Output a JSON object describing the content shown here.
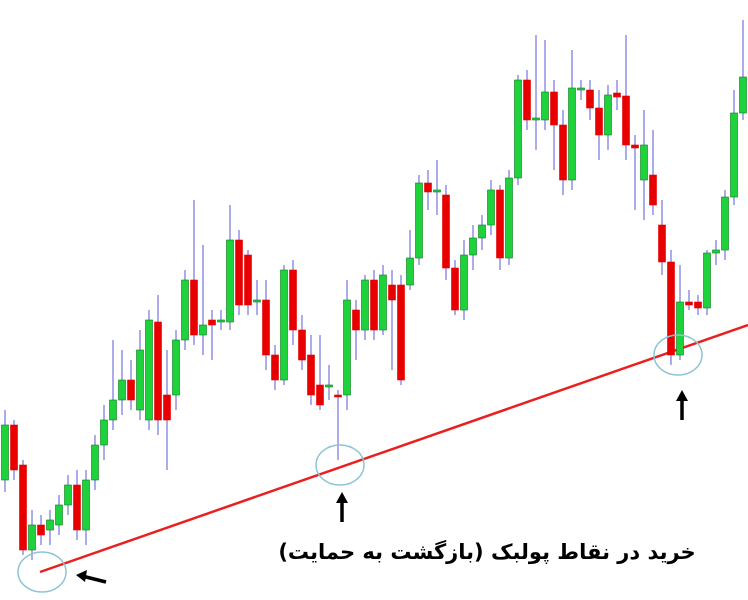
{
  "chart_data": {
    "type": "candlestick",
    "annotation": "خرید در نقاط پولبک (بازگشت به حمایت)",
    "ylim": [
      0,
      600
    ],
    "up_color": "#1ed23c",
    "down_color": "#e80000",
    "wick_color": "#5a5ad8",
    "open": [
      120,
      175,
      135,
      50,
      75,
      70,
      75,
      95,
      115,
      70,
      120,
      155,
      180,
      200,
      220,
      190,
      180,
      278,
      205,
      205,
      260,
      320,
      265,
      280,
      278,
      278,
      360,
      345,
      298,
      300,
      245,
      220,
      330,
      270,
      245,
      215,
      213,
      205,
      205,
      290,
      270,
      320,
      270,
      315,
      315,
      315,
      342,
      417,
      408,
      405,
      332,
      290,
      345,
      362,
      375,
      410,
      342,
      422,
      520,
      480,
      480,
      508,
      475,
      420,
      510,
      510,
      492,
      465,
      507,
      504,
      455,
      420,
      425,
      375,
      338,
      245,
      298,
      298,
      292,
      347,
      350,
      403,
      487
    ],
    "high": [
      190,
      180,
      140,
      90,
      85,
      90,
      105,
      125,
      130,
      130,
      165,
      195,
      260,
      250,
      240,
      270,
      290,
      305,
      250,
      270,
      330,
      400,
      355,
      290,
      290,
      395,
      370,
      350,
      320,
      320,
      255,
      335,
      340,
      285,
      265,
      265,
      235,
      210,
      320,
      300,
      325,
      330,
      335,
      330,
      325,
      370,
      425,
      430,
      440,
      415,
      340,
      360,
      375,
      385,
      420,
      415,
      430,
      525,
      530,
      565,
      560,
      520,
      490,
      550,
      520,
      520,
      510,
      515,
      520,
      565,
      465,
      490,
      470,
      400,
      350,
      335,
      310,
      305,
      350,
      360,
      410,
      510,
      580
    ],
    "low": [
      108,
      120,
      45,
      40,
      55,
      55,
      65,
      85,
      60,
      55,
      110,
      140,
      170,
      185,
      190,
      180,
      170,
      165,
      130,
      190,
      250,
      255,
      245,
      240,
      270,
      270,
      285,
      285,
      285,
      230,
      210,
      215,
      255,
      230,
      195,
      190,
      200,
      140,
      190,
      240,
      260,
      260,
      265,
      230,
      215,
      310,
      335,
      390,
      385,
      320,
      285,
      280,
      330,
      350,
      365,
      330,
      335,
      415,
      470,
      450,
      470,
      430,
      405,
      410,
      500,
      480,
      440,
      450,
      490,
      440,
      390,
      380,
      385,
      325,
      235,
      240,
      290,
      285,
      285,
      335,
      340,
      395,
      480
    ],
    "close": [
      175,
      130,
      50,
      75,
      65,
      80,
      95,
      115,
      70,
      120,
      155,
      180,
      200,
      220,
      200,
      250,
      280,
      180,
      180,
      260,
      320,
      265,
      275,
      275,
      280,
      360,
      295,
      295,
      300,
      245,
      220,
      330,
      270,
      240,
      205,
      195,
      215,
      203,
      300,
      270,
      320,
      270,
      325,
      300,
      220,
      342,
      417,
      408,
      410,
      332,
      290,
      345,
      362,
      375,
      410,
      342,
      422,
      520,
      480,
      482,
      508,
      475,
      420,
      512,
      512,
      492,
      465,
      505,
      503,
      455,
      452,
      455,
      395,
      338,
      245,
      298,
      295,
      292,
      347,
      350,
      403,
      487,
      523
    ]
  }
}
